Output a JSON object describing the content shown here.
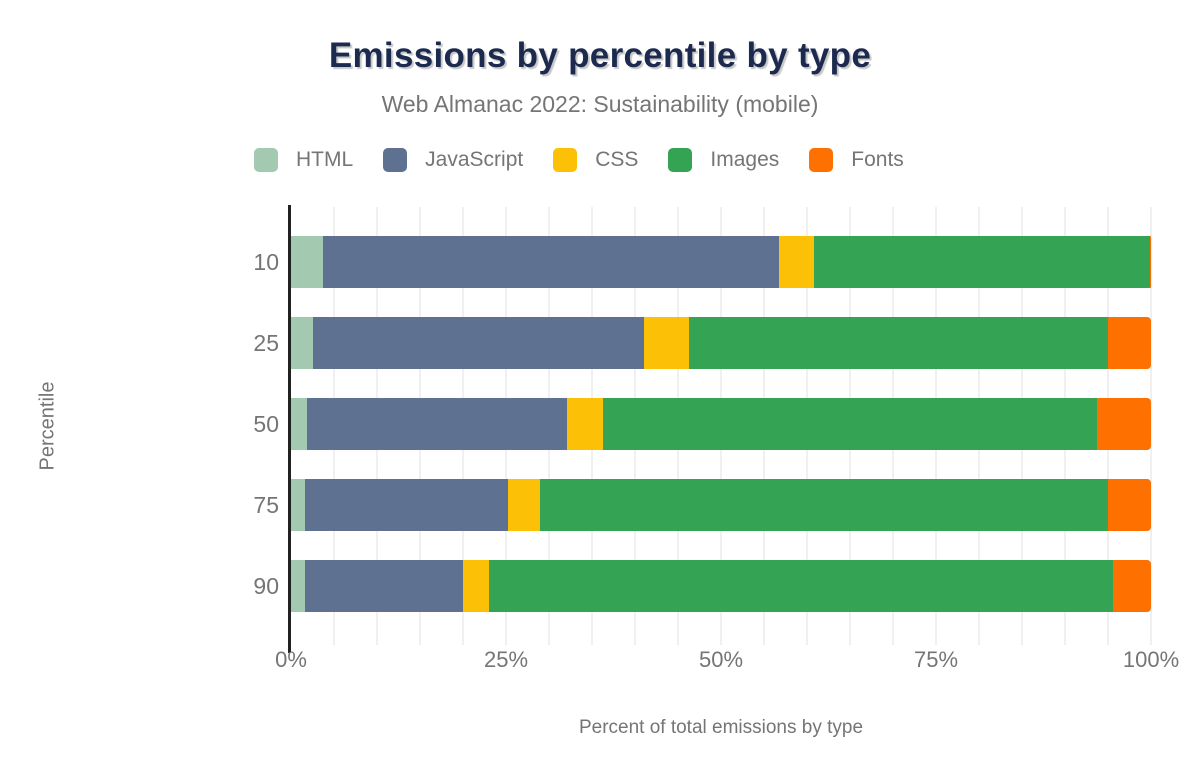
{
  "header": {
    "title": "Emissions by percentile by type",
    "subtitle": "Web Almanac 2022: Sustainability (mobile)"
  },
  "chart_data": {
    "type": "bar",
    "orientation": "horizontal",
    "stacked": true,
    "title": "Emissions by percentile by type",
    "subtitle": "Web Almanac 2022: Sustainability (mobile)",
    "xlabel": "Percent of total emissions by type",
    "ylabel": "Percentile",
    "categories": [
      "10",
      "25",
      "50",
      "75",
      "90"
    ],
    "series": [
      {
        "name": "HTML",
        "color": "#a3c9b1",
        "values": [
          3.7,
          2.5,
          1.9,
          1.6,
          1.6
        ]
      },
      {
        "name": "JavaScript",
        "color": "#5f7190",
        "values": [
          53.0,
          38.5,
          30.2,
          23.6,
          18.4
        ]
      },
      {
        "name": "CSS",
        "color": "#fcc006",
        "values": [
          4.1,
          5.3,
          4.2,
          3.7,
          3.0
        ]
      },
      {
        "name": "Images",
        "color": "#34a353",
        "values": [
          39.1,
          48.7,
          57.4,
          66.1,
          72.6
        ]
      },
      {
        "name": "Fonts",
        "color": "#fe7000",
        "values": [
          0.1,
          5.0,
          6.3,
          5.0,
          4.4
        ]
      }
    ],
    "x_ticks": [
      "0%",
      "25%",
      "50%",
      "75%",
      "100%"
    ],
    "xlim": [
      0,
      100
    ],
    "grid": "vertical gridlines every 5%",
    "legend_position": "top"
  },
  "colors": {
    "title_text": "#1b2a4e",
    "muted_text": "#757575",
    "axis_line": "#212121",
    "gridline": "#f0f0f0",
    "background": "#ffffff"
  }
}
